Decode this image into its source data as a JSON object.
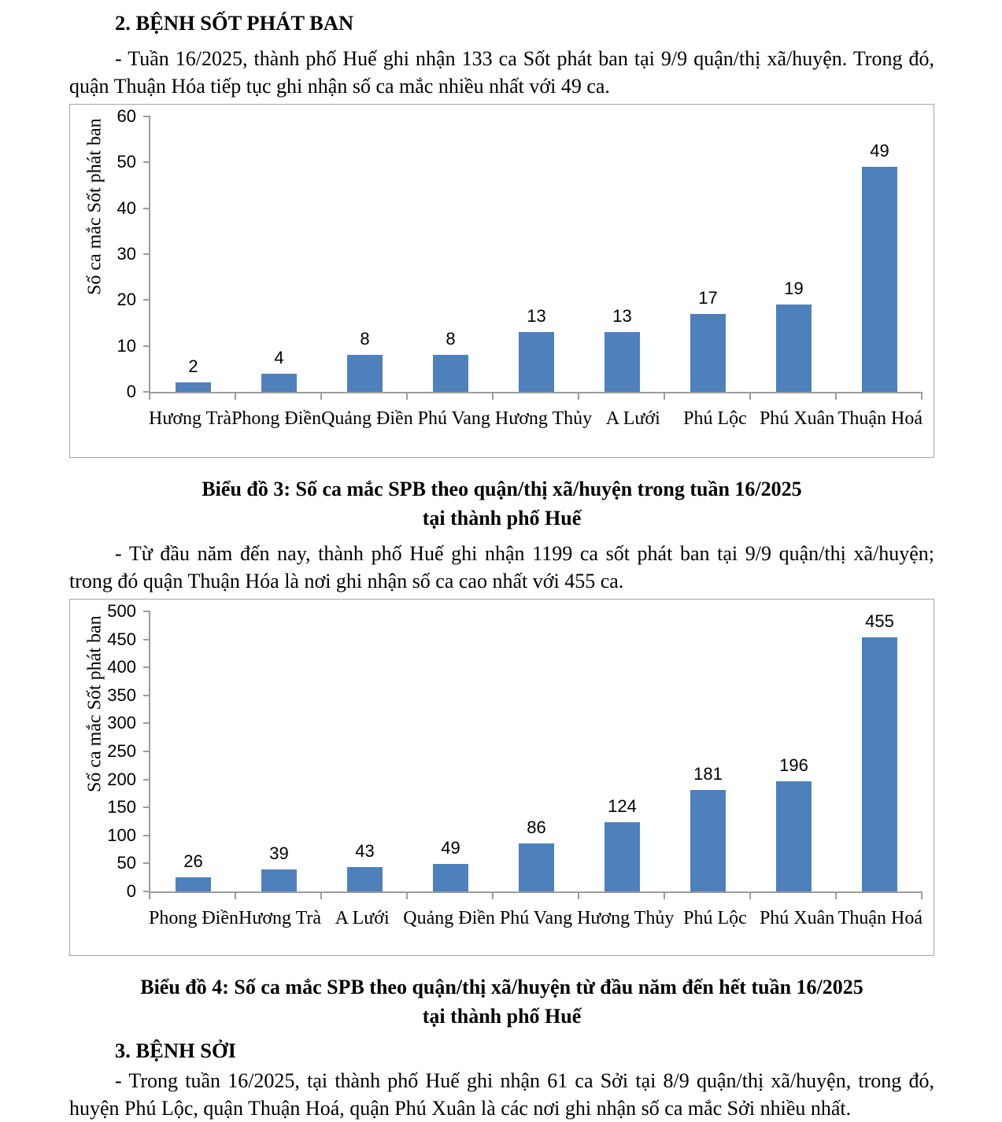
{
  "document": {
    "section_2_heading": "2. BỆNH SỐT PHÁT BAN",
    "section_2_paragraph_1": "- Tuần 16/2025, thành phố Huế ghi nhận 133 ca Sốt phát ban tại 9/9 quận/thị xã/huyện. Trong đó, quận Thuận Hóa tiếp tục ghi nhận số ca mắc nhiều nhất với 49 ca.",
    "chart3_caption_line1": "Biểu đồ 3: Số ca mắc SPB theo quận/thị xã/huyện trong tuần 16/2025",
    "chart3_caption_line2": "tại thành phố Huế",
    "section_2_paragraph_2": "- Từ đầu năm đến nay, thành phố Huế ghi nhận 1199 ca sốt phát ban tại 9/9 quận/thị xã/huyện; trong đó quận Thuận Hóa là nơi ghi nhận số ca cao nhất với 455 ca.",
    "chart4_caption_line1": "Biểu đồ 4: Số ca mắc SPB theo quận/thị xã/huyện từ đầu năm đến hết tuần 16/2025",
    "chart4_caption_line2": "tại thành phố Huế",
    "section_3_heading": "3. BỆNH SỞI",
    "section_3_paragraph_1": "- Trong tuần 16/2025, tại thành phố Huế ghi nhận 61 ca Sởi tại 8/9 quận/thị xã/huyện, trong đó, huyện Phú Lộc, quận Thuận Hoá, quận Phú Xuân là các nơi ghi nhận số ca mắc Sởi nhiều nhất."
  },
  "chart_data": [
    {
      "type": "bar",
      "title": "",
      "ylabel": "Số ca mắc Sốt phát ban",
      "xlabel": "",
      "categories": [
        "Hương Trà",
        "Phong Điền",
        "Quảng Điền",
        "Phú Vang",
        "Hương Thủy",
        "A Lưới",
        "Phú Lộc",
        "Phú Xuân",
        "Thuận Hoá"
      ],
      "values": [
        2,
        4,
        8,
        8,
        13,
        13,
        17,
        19,
        49
      ],
      "ylim": [
        0,
        60
      ],
      "ytick_step": 10,
      "bar_color": "#4E81BC",
      "axis_color": "#9C9C9C",
      "grid": false,
      "legend": "none",
      "data_labels": true
    },
    {
      "type": "bar",
      "title": "",
      "ylabel": "Số ca mắc Sốt phát ban",
      "xlabel": "",
      "categories": [
        "Phong Điền",
        "Hương Trà",
        "A Lưới",
        "Quảng Điền",
        "Phú Vang",
        "Hương Thủy",
        "Phú Lộc",
        "Phú Xuân",
        "Thuận Hoá"
      ],
      "values": [
        26,
        39,
        43,
        49,
        86,
        124,
        181,
        196,
        455
      ],
      "ylim": [
        0,
        500
      ],
      "ytick_step": 50,
      "bar_color": "#4E81BC",
      "axis_color": "#9C9C9C",
      "grid": false,
      "legend": "none",
      "data_labels": true
    }
  ]
}
